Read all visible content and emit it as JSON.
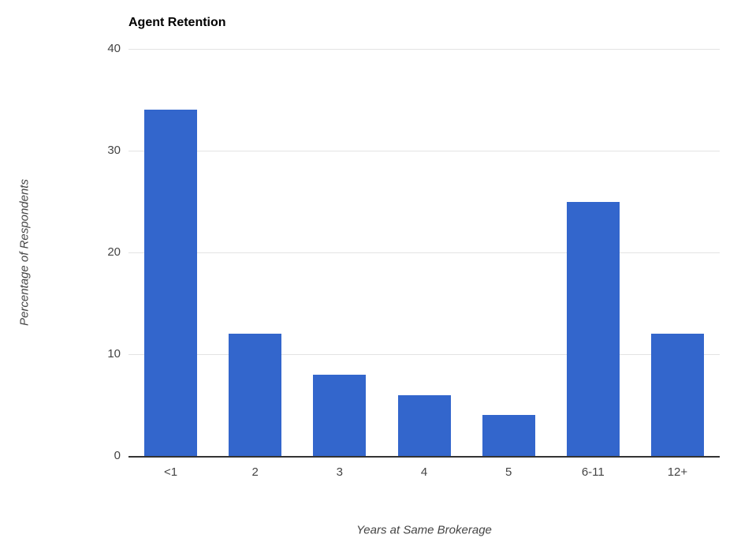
{
  "chart_data": {
    "type": "bar",
    "title": "Agent Retention",
    "xlabel": "Years at Same Brokerage",
    "ylabel": "Percentage of Respondents",
    "categories": [
      "<1",
      "2",
      "3",
      "4",
      "5",
      "6-11",
      "12+"
    ],
    "values": [
      34,
      12,
      8,
      6,
      4,
      25,
      12
    ],
    "ylim": [
      0,
      40
    ],
    "yticks": [
      0,
      10,
      20,
      30,
      40
    ],
    "grid": true,
    "legend_position": "none",
    "bar_color": "#3366cc",
    "gridline_color": "#e3e3e3",
    "axis_line_color": "#333333",
    "tick_text_color": "#444444",
    "title_color": "#000000"
  }
}
